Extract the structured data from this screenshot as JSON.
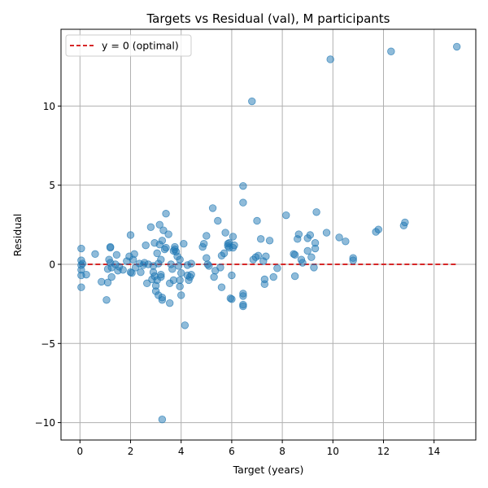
{
  "chart_data": {
    "type": "scatter",
    "title": "Targets vs Residual (val), M participants",
    "xlabel": "Target (years)",
    "ylabel": "Residual",
    "xlim": [
      -0.75,
      15.65
    ],
    "ylim": [
      -11.1,
      14.85
    ],
    "xticks": [
      0,
      2,
      4,
      6,
      8,
      10,
      12,
      14
    ],
    "yticks": [
      -10,
      -5,
      0,
      5,
      10
    ],
    "grid": true,
    "legend": {
      "placement": "top-left",
      "entries": [
        "y = 0 (optimal)"
      ]
    },
    "reference_line": {
      "label": "y = 0 (optimal)",
      "y": 0,
      "x_range": [
        0,
        14.9
      ],
      "color": "#d62728",
      "style": "dashed"
    },
    "marker_color": "#1f77b4",
    "marker_alpha": 0.5,
    "points": [
      [
        0.05,
        1.0
      ],
      [
        0.05,
        0.25
      ],
      [
        0.05,
        -0.05
      ],
      [
        0.05,
        -0.35
      ],
      [
        0.05,
        -0.7
      ],
      [
        0.05,
        -1.45
      ],
      [
        0.1,
        0.05
      ],
      [
        0.25,
        -0.65
      ],
      [
        0.6,
        0.65
      ],
      [
        0.85,
        -1.1
      ],
      [
        1.05,
        -2.25
      ],
      [
        1.1,
        -0.3
      ],
      [
        1.1,
        -1.15
      ],
      [
        1.15,
        0.3
      ],
      [
        1.2,
        1.05
      ],
      [
        1.2,
        1.1
      ],
      [
        1.2,
        0.1
      ],
      [
        1.25,
        -0.2
      ],
      [
        1.25,
        -0.8
      ],
      [
        1.4,
        0.0
      ],
      [
        1.45,
        0.6
      ],
      [
        1.5,
        -0.4
      ],
      [
        1.55,
        -0.15
      ],
      [
        1.7,
        -0.35
      ],
      [
        1.85,
        0.2
      ],
      [
        1.95,
        0.5
      ],
      [
        2.0,
        1.85
      ],
      [
        2.0,
        -0.5
      ],
      [
        2.05,
        -0.55
      ],
      [
        2.1,
        0.3
      ],
      [
        2.15,
        0.65
      ],
      [
        2.2,
        -0.2
      ],
      [
        2.35,
        0.05
      ],
      [
        2.4,
        -0.5
      ],
      [
        2.5,
        -0.05
      ],
      [
        2.55,
        0.1
      ],
      [
        2.6,
        1.2
      ],
      [
        2.65,
        -1.2
      ],
      [
        2.7,
        0.0
      ],
      [
        2.8,
        2.35
      ],
      [
        2.85,
        -0.95
      ],
      [
        2.9,
        -0.1
      ],
      [
        2.9,
        -0.5
      ],
      [
        2.95,
        1.35
      ],
      [
        2.95,
        -0.75
      ],
      [
        3.0,
        -1.35
      ],
      [
        3.0,
        -1.7
      ],
      [
        3.05,
        0.7
      ],
      [
        3.05,
        -1.0
      ],
      [
        3.1,
        0.05
      ],
      [
        3.1,
        -1.95
      ],
      [
        3.15,
        1.25
      ],
      [
        3.15,
        2.5
      ],
      [
        3.2,
        0.3
      ],
      [
        3.2,
        -0.65
      ],
      [
        3.2,
        -0.8
      ],
      [
        3.25,
        1.5
      ],
      [
        3.25,
        -2.1
      ],
      [
        3.25,
        -2.25
      ],
      [
        3.25,
        -9.8
      ],
      [
        3.3,
        2.15
      ],
      [
        3.35,
        0.95
      ],
      [
        3.4,
        1.05
      ],
      [
        3.4,
        3.2
      ],
      [
        3.5,
        1.9
      ],
      [
        3.55,
        -1.2
      ],
      [
        3.55,
        -2.45
      ],
      [
        3.6,
        0.0
      ],
      [
        3.65,
        -0.3
      ],
      [
        3.7,
        0.85
      ],
      [
        3.7,
        -1.0
      ],
      [
        3.75,
        1.1
      ],
      [
        3.75,
        0.95
      ],
      [
        3.8,
        0.8
      ],
      [
        3.85,
        0.5
      ],
      [
        3.9,
        -0.1
      ],
      [
        3.95,
        0.3
      ],
      [
        3.95,
        -1.0
      ],
      [
        3.95,
        -1.4
      ],
      [
        4.0,
        -0.55
      ],
      [
        4.0,
        -1.95
      ],
      [
        4.1,
        1.3
      ],
      [
        4.15,
        -3.85
      ],
      [
        4.25,
        -0.05
      ],
      [
        4.25,
        -0.7
      ],
      [
        4.3,
        -1.0
      ],
      [
        4.35,
        -0.8
      ],
      [
        4.4,
        0.05
      ],
      [
        4.4,
        -0.65
      ],
      [
        4.85,
        1.1
      ],
      [
        4.9,
        1.3
      ],
      [
        5.0,
        1.8
      ],
      [
        5.0,
        0.4
      ],
      [
        5.05,
        0.0
      ],
      [
        5.1,
        -0.1
      ],
      [
        5.25,
        3.55
      ],
      [
        5.3,
        -0.8
      ],
      [
        5.35,
        -0.4
      ],
      [
        5.45,
        2.75
      ],
      [
        5.55,
        -0.2
      ],
      [
        5.6,
        0.55
      ],
      [
        5.6,
        -1.45
      ],
      [
        5.7,
        0.7
      ],
      [
        5.75,
        2.0
      ],
      [
        5.85,
        1.3
      ],
      [
        5.85,
        1.15
      ],
      [
        5.9,
        1.35
      ],
      [
        5.9,
        1.05
      ],
      [
        5.95,
        -2.15
      ],
      [
        6.0,
        -2.2
      ],
      [
        6.0,
        -0.7
      ],
      [
        6.05,
        1.75
      ],
      [
        6.05,
        1.05
      ],
      [
        6.1,
        1.2
      ],
      [
        6.45,
        4.95
      ],
      [
        6.45,
        3.9
      ],
      [
        6.45,
        -1.85
      ],
      [
        6.45,
        -2.0
      ],
      [
        6.45,
        -2.55
      ],
      [
        6.45,
        -2.65
      ],
      [
        6.8,
        10.3
      ],
      [
        6.85,
        0.3
      ],
      [
        6.95,
        0.45
      ],
      [
        7.0,
        2.75
      ],
      [
        7.05,
        0.55
      ],
      [
        7.15,
        1.6
      ],
      [
        7.25,
        0.2
      ],
      [
        7.3,
        -0.95
      ],
      [
        7.3,
        -1.25
      ],
      [
        7.35,
        0.5
      ],
      [
        7.5,
        1.5
      ],
      [
        7.65,
        -0.8
      ],
      [
        7.8,
        -0.25
      ],
      [
        8.15,
        3.1
      ],
      [
        8.45,
        0.65
      ],
      [
        8.5,
        0.6
      ],
      [
        8.5,
        -0.75
      ],
      [
        8.6,
        1.6
      ],
      [
        8.65,
        1.9
      ],
      [
        8.75,
        0.3
      ],
      [
        8.8,
        0.1
      ],
      [
        9.0,
        1.65
      ],
      [
        9.0,
        0.85
      ],
      [
        9.1,
        1.85
      ],
      [
        9.15,
        0.45
      ],
      [
        9.25,
        -0.2
      ],
      [
        9.3,
        1.0
      ],
      [
        9.3,
        1.35
      ],
      [
        9.35,
        3.3
      ],
      [
        9.75,
        2.0
      ],
      [
        9.9,
        12.95
      ],
      [
        10.25,
        1.7
      ],
      [
        10.5,
        1.45
      ],
      [
        10.8,
        0.4
      ],
      [
        10.8,
        0.25
      ],
      [
        11.7,
        2.05
      ],
      [
        11.8,
        2.2
      ],
      [
        12.3,
        13.45
      ],
      [
        12.8,
        2.45
      ],
      [
        12.85,
        2.65
      ],
      [
        14.9,
        13.75
      ]
    ]
  }
}
